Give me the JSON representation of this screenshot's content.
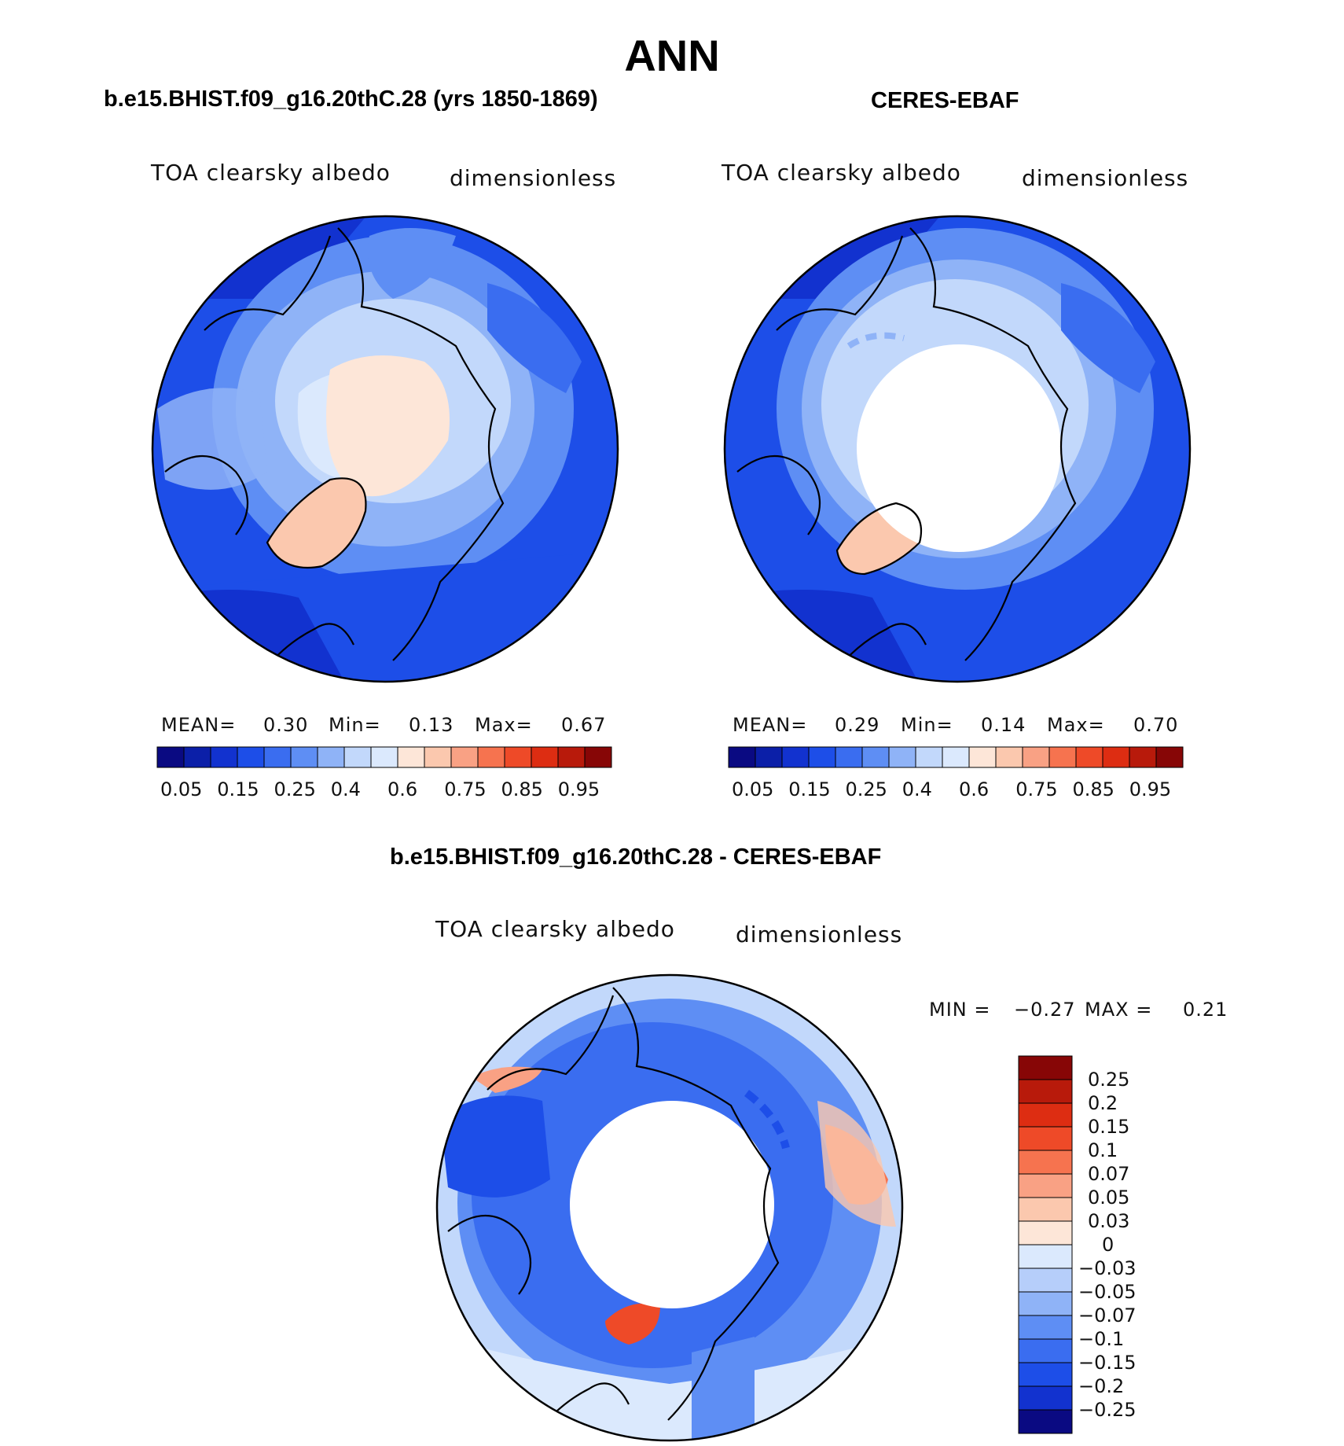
{
  "title": "ANN",
  "panels": [
    {
      "id": "model",
      "title": "b.e15.BHIST.f09_g16.20thC.28 (yrs 1850-1869)",
      "variable": "TOA clearsky albedo",
      "units": "dimensionless",
      "stats": {
        "mean_label": "MEAN=",
        "mean": "0.30",
        "min_label": "Min=",
        "min": "0.13",
        "max_label": "Max=",
        "max": "0.67"
      },
      "map": {
        "projection": "north-polar-stereographic",
        "pole_value_class": "0.4-0.6",
        "missing_polar_cap": false
      }
    },
    {
      "id": "obs",
      "title": "CERES-EBAF",
      "variable": "TOA clearsky albedo",
      "units": "dimensionless",
      "stats": {
        "mean_label": "MEAN=",
        "mean": "0.29",
        "min_label": "Min=",
        "min": "0.14",
        "max_label": "Max=",
        "max": "0.70"
      },
      "map": {
        "projection": "north-polar-stereographic",
        "missing_polar_cap": true
      }
    },
    {
      "id": "diff",
      "title": "b.e15.BHIST.f09_g16.20thC.28 - CERES-EBAF",
      "variable": "TOA clearsky albedo",
      "units": "dimensionless",
      "stats": {
        "min_label": "MIN =",
        "min": "−0.27",
        "max_label": "MAX =",
        "max": "0.21"
      },
      "map": {
        "projection": "north-polar-stereographic",
        "missing_polar_cap": true
      }
    }
  ],
  "colorbar_main": {
    "labels": [
      "0.05",
      "0.15",
      "0.25",
      "0.4",
      "0.6",
      "0.75",
      "0.85",
      "0.95"
    ],
    "colors": [
      "#0a0a82",
      "#0b1fa8",
      "#1232cf",
      "#1d4ee8",
      "#3a6df0",
      "#5e8ef4",
      "#8fb3f7",
      "#c2d8fb",
      "#dbe9fd",
      "#fde6d8",
      "#fbc8ae",
      "#f9a184",
      "#f6734f",
      "#ee4a28",
      "#dd2d12",
      "#b81a0b",
      "#870606"
    ]
  },
  "colorbar_diff": {
    "labels": [
      "0.25",
      "0.2",
      "0.15",
      "0.1",
      "0.07",
      "0.05",
      "0.03",
      "0",
      "−0.03",
      "−0.05",
      "−0.07",
      "−0.1",
      "−0.15",
      "−0.2",
      "−0.25"
    ],
    "colors": [
      "#870606",
      "#b81a0b",
      "#dd2d12",
      "#ee4a28",
      "#f6734f",
      "#f9a184",
      "#fbc8ae",
      "#fde6d8",
      "#dbe9fd",
      "#b6cefa",
      "#8fb3f7",
      "#5e8ef4",
      "#3a6df0",
      "#1d4ee8",
      "#1232cf",
      "#0a0a82"
    ]
  }
}
